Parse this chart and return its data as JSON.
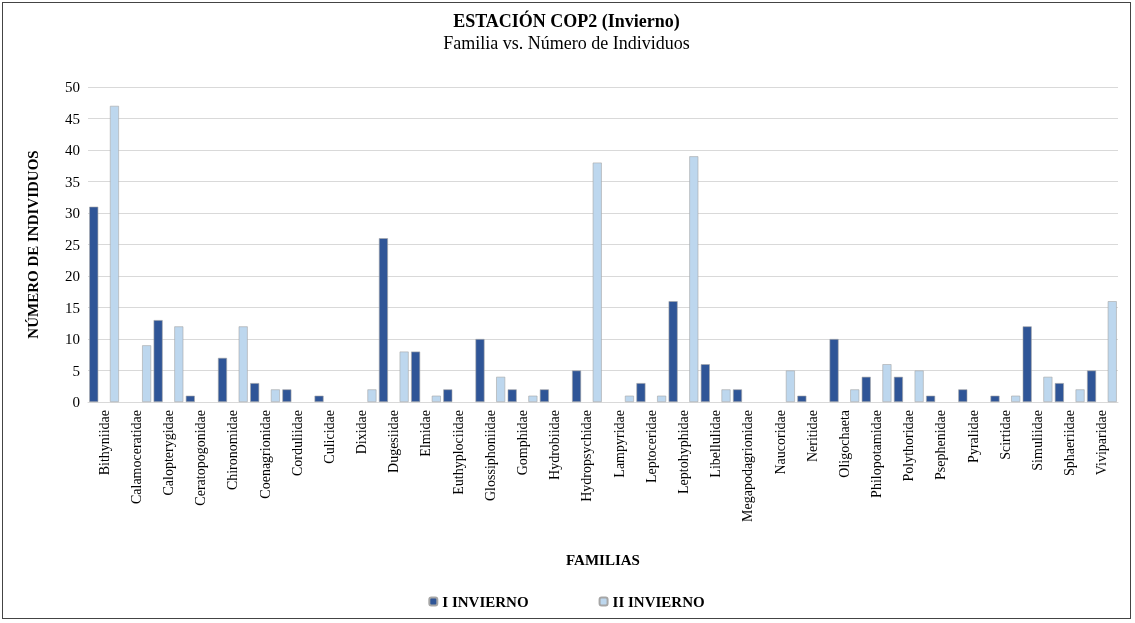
{
  "chart_data": {
    "type": "bar",
    "title": "ESTACIÓN COP2 (Invierno)",
    "subtitle": "Familia vs. Número de Individuos",
    "xlabel": "FAMILIAS",
    "ylabel": "NÚMERO DE INDIVIDUOS",
    "categories": [
      "Bithyniidae",
      "Calamoceratidae",
      "Calopterygidae",
      "Ceratopogonidae",
      "Chironomidae",
      "Coenagrionidae",
      "Corduliidae",
      "Culicidae",
      "Dixidae",
      "Dugesiidae",
      "Elmidae",
      "Euthyplociidae",
      "Glossiphoniidae",
      "Gomphidae",
      "Hydrobiidae",
      "Hydropsychidae",
      "Lampyridae",
      "Leptoceridae",
      "Leptohyphidae",
      "Libellulidae",
      "Megapodagrionidae",
      "Naucoridae",
      "Neritidae",
      "Oligochaeta",
      "Philopotamidae",
      "Polythoridae",
      "Psephenidae",
      "Pyralidae",
      "Scirtidae",
      "Simuliidae",
      "Sphaeriidae",
      "Viviparidae"
    ],
    "series": [
      {
        "name": "I INVIERNO",
        "color": "#2f5597",
        "values": [
          31,
          null,
          13,
          1,
          7,
          3,
          2,
          1,
          null,
          26,
          8,
          2,
          10,
          2,
          2,
          5,
          null,
          3,
          16,
          6,
          2,
          null,
          1,
          10,
          4,
          4,
          1,
          2,
          1,
          12,
          3,
          5
        ]
      },
      {
        "name": "II INVIERNO",
        "color": "#bdd7ee",
        "values": [
          47,
          9,
          12,
          null,
          12,
          2,
          null,
          null,
          2,
          8,
          1,
          null,
          4,
          1,
          null,
          38,
          1,
          1,
          39,
          2,
          null,
          5,
          null,
          2,
          6,
          5,
          null,
          null,
          1,
          4,
          2,
          16
        ]
      }
    ],
    "ylim": [
      0,
      50
    ],
    "yticks": [
      0,
      5,
      10,
      15,
      20,
      25,
      30,
      35,
      40,
      45,
      50
    ],
    "grid": "y",
    "legend": "bottom"
  }
}
